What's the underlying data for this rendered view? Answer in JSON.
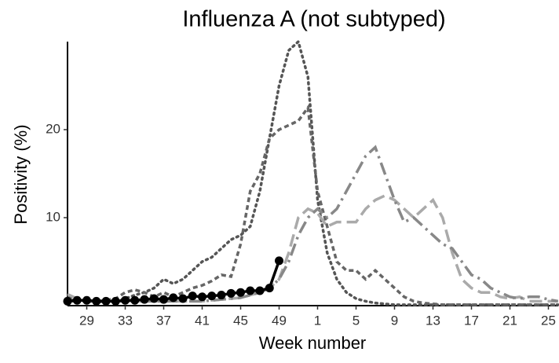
{
  "chart_data": {
    "type": "line",
    "title": "Influenza A (not subtyped)",
    "x_label": "Week number",
    "y_label": "Positivity (%)",
    "categories": [
      null,
      null,
      "29",
      null,
      null,
      null,
      "33",
      null,
      null,
      null,
      "37",
      null,
      null,
      null,
      "41",
      null,
      null,
      null,
      "45",
      null,
      null,
      null,
      "49",
      null,
      null,
      null,
      "1",
      null,
      null,
      null,
      "5",
      null,
      null,
      null,
      "9",
      null,
      null,
      null,
      "13",
      null,
      null,
      null,
      "17",
      null,
      null,
      null,
      "21",
      null,
      null,
      null,
      "25",
      null
    ],
    "ylim": [
      0,
      30
    ],
    "yticks": [
      10,
      20
    ],
    "series": [
      {
        "color": "#555555",
        "line_style": "dotted",
        "values": [
          0.8,
          0.5,
          0.5,
          0.4,
          0.5,
          0.5,
          0.8,
          1.2,
          1.5,
          2,
          3,
          2.5,
          3,
          4,
          5,
          5.5,
          6.5,
          7.5,
          8,
          9,
          13,
          19,
          25,
          29,
          30,
          26,
          12,
          6,
          3,
          1.5,
          0.8,
          0.5,
          0.3,
          0.2,
          0.1,
          0.1,
          0.1,
          0.1,
          0.1,
          0.1,
          0.1,
          0.1,
          0.1,
          0.1,
          0.1,
          0.1,
          0.1,
          0.1,
          0.1,
          0.1,
          0.1,
          0.1
        ]
      },
      {
        "color": "#666666",
        "line_style": "short-dash",
        "values": [
          1,
          0.7,
          0.6,
          0.5,
          0.6,
          0.8,
          1.5,
          1.8,
          1.5,
          1,
          1.5,
          1,
          1.5,
          2,
          2.3,
          2.8,
          3.5,
          3.3,
          7,
          13,
          15,
          19,
          20,
          20.5,
          21,
          22.5,
          13,
          9,
          5,
          4,
          4,
          3,
          4,
          3,
          2,
          1,
          0.5,
          0.3,
          0.2,
          0.1,
          0.1,
          0.1,
          0.1,
          0.1,
          0.1,
          0.1,
          0.1,
          0.1,
          0.1,
          0.1,
          0.1,
          0.1
        ]
      },
      {
        "color": "#aaaaaa",
        "line_style": "long-dash",
        "values": [
          1.3,
          0.8,
          0.5,
          0.5,
          0.5,
          0.5,
          0.5,
          0.5,
          0.5,
          0.5,
          0.5,
          0.5,
          0.5,
          0.5,
          0.5,
          0.6,
          0.7,
          0.8,
          0.9,
          1.2,
          1.5,
          2,
          3,
          6,
          10,
          11,
          10.5,
          9,
          9.5,
          9.5,
          9.5,
          11,
          12,
          12.5,
          12,
          11,
          10,
          11,
          12,
          10,
          6,
          3,
          2,
          1.5,
          1.5,
          1,
          0.8,
          1,
          0.5,
          0.5,
          0.5,
          0.5
        ]
      },
      {
        "color": "#888888",
        "line_style": "dash-dot",
        "values": [
          0.5,
          0.5,
          0.5,
          0.5,
          0.5,
          0.5,
          0.5,
          0.5,
          0.5,
          0.5,
          0.5,
          0.5,
          0.5,
          0.5,
          0.5,
          0.6,
          0.7,
          0.8,
          0.9,
          1.2,
          1.5,
          2,
          3,
          5,
          8,
          10,
          11,
          10,
          11,
          13,
          15,
          17,
          18,
          15,
          12,
          9.5,
          10,
          9,
          8,
          7,
          6.5,
          5,
          3.5,
          3,
          2,
          1.5,
          1,
          0.8,
          1,
          1,
          0.7,
          0.5
        ]
      },
      {
        "color": "#000000",
        "line_style": "solid",
        "markers": true,
        "values": [
          0.5,
          0.6,
          0.6,
          0.5,
          0.5,
          0.5,
          0.6,
          0.6,
          0.7,
          0.8,
          0.7,
          0.9,
          0.8,
          1.1,
          1.0,
          1.1,
          1.2,
          1.4,
          1.5,
          1.7,
          1.7,
          2.0,
          5.1,
          null,
          null,
          null,
          null,
          null,
          null,
          null,
          null,
          null,
          null,
          null,
          null,
          null,
          null,
          null,
          null,
          null,
          null,
          null,
          null,
          null,
          null,
          null,
          null,
          null,
          null,
          null,
          null,
          null
        ]
      }
    ]
  }
}
